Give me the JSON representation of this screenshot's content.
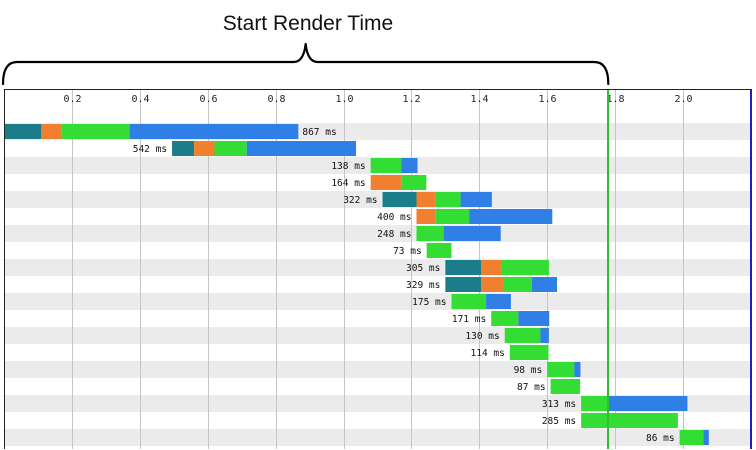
{
  "chart_data": {
    "type": "waterfall",
    "title": "Start Render Time",
    "xlim": [
      0.0,
      2.2
    ],
    "x_ticks": [
      0.2,
      0.4,
      0.6,
      0.8,
      1.0,
      1.2,
      1.4,
      1.6,
      1.8,
      2.0
    ],
    "x_tick_labels": [
      "0.2",
      "0.4",
      "0.6",
      "0.8",
      "1.0",
      "1.2",
      "1.4",
      "1.6",
      "1.8",
      "2.0"
    ],
    "grid": true,
    "start_render": 1.78,
    "start_render_color": "#2fbf2f",
    "document_complete_color": "#2020c0",
    "phase_colors": {
      "connect": "#1a7d89",
      "ssl": "#f08030",
      "ttfb": "#33dd33",
      "download": "#2f7fe6"
    },
    "requests": [
      {
        "label": "867 ms",
        "segments": [
          {
            "phase": "connect",
            "start": 0.0,
            "end": 0.11
          },
          {
            "phase": "ssl",
            "start": 0.11,
            "end": 0.17
          },
          {
            "phase": "ttfb",
            "start": 0.17,
            "end": 0.37
          },
          {
            "phase": "download",
            "start": 0.37,
            "end": 0.867
          }
        ]
      },
      {
        "label": "542 ms",
        "segments": [
          {
            "phase": "connect",
            "start": 0.495,
            "end": 0.56
          },
          {
            "phase": "ssl",
            "start": 0.56,
            "end": 0.62
          },
          {
            "phase": "ttfb",
            "start": 0.62,
            "end": 0.715
          },
          {
            "phase": "download",
            "start": 0.715,
            "end": 1.037
          }
        ]
      },
      {
        "label": "138 ms",
        "segments": [
          {
            "phase": "ttfb",
            "start": 1.08,
            "end": 1.17
          },
          {
            "phase": "download",
            "start": 1.17,
            "end": 1.218
          }
        ]
      },
      {
        "label": "164 ms",
        "segments": [
          {
            "phase": "ssl",
            "start": 1.08,
            "end": 1.17
          },
          {
            "phase": "ttfb",
            "start": 1.17,
            "end": 1.244
          }
        ]
      },
      {
        "label": "322 ms",
        "segments": [
          {
            "phase": "connect",
            "start": 1.115,
            "end": 1.215
          },
          {
            "phase": "ssl",
            "start": 1.215,
            "end": 1.27
          },
          {
            "phase": "ttfb",
            "start": 1.27,
            "end": 1.345
          },
          {
            "phase": "download",
            "start": 1.345,
            "end": 1.437
          }
        ]
      },
      {
        "label": "400 ms",
        "segments": [
          {
            "phase": "ssl",
            "start": 1.215,
            "end": 1.27
          },
          {
            "phase": "ttfb",
            "start": 1.27,
            "end": 1.37
          },
          {
            "phase": "download",
            "start": 1.37,
            "end": 1.615
          }
        ]
      },
      {
        "label": "248 ms",
        "segments": [
          {
            "phase": "ttfb",
            "start": 1.215,
            "end": 1.295
          },
          {
            "phase": "download",
            "start": 1.295,
            "end": 1.463
          }
        ]
      },
      {
        "label": "73 ms",
        "segments": [
          {
            "phase": "ttfb",
            "start": 1.245,
            "end": 1.318
          }
        ]
      },
      {
        "label": "305 ms",
        "segments": [
          {
            "phase": "connect",
            "start": 1.3,
            "end": 1.405
          },
          {
            "phase": "ssl",
            "start": 1.405,
            "end": 1.465
          },
          {
            "phase": "ttfb",
            "start": 1.465,
            "end": 1.605
          }
        ]
      },
      {
        "label": "329 ms",
        "segments": [
          {
            "phase": "connect",
            "start": 1.3,
            "end": 1.405
          },
          {
            "phase": "ssl",
            "start": 1.405,
            "end": 1.47
          },
          {
            "phase": "ttfb",
            "start": 1.47,
            "end": 1.555
          },
          {
            "phase": "download",
            "start": 1.555,
            "end": 1.629
          }
        ]
      },
      {
        "label": "175 ms",
        "segments": [
          {
            "phase": "ttfb",
            "start": 1.318,
            "end": 1.42
          },
          {
            "phase": "download",
            "start": 1.42,
            "end": 1.493
          }
        ]
      },
      {
        "label": "171 ms",
        "segments": [
          {
            "phase": "ttfb",
            "start": 1.435,
            "end": 1.515
          },
          {
            "phase": "download",
            "start": 1.515,
            "end": 1.606
          }
        ]
      },
      {
        "label": "130 ms",
        "segments": [
          {
            "phase": "ttfb",
            "start": 1.475,
            "end": 1.58
          },
          {
            "phase": "download",
            "start": 1.58,
            "end": 1.605
          }
        ]
      },
      {
        "label": "114 ms",
        "segments": [
          {
            "phase": "ttfb",
            "start": 1.49,
            "end": 1.604
          }
        ]
      },
      {
        "label": "98 ms",
        "segments": [
          {
            "phase": "ttfb",
            "start": 1.6,
            "end": 1.68
          },
          {
            "phase": "download",
            "start": 1.68,
            "end": 1.698
          }
        ]
      },
      {
        "label": "87 ms",
        "segments": [
          {
            "phase": "ttfb",
            "start": 1.61,
            "end": 1.697
          }
        ]
      },
      {
        "label": "313 ms",
        "segments": [
          {
            "phase": "ttfb",
            "start": 1.7,
            "end": 1.78
          },
          {
            "phase": "download",
            "start": 1.78,
            "end": 2.013
          }
        ]
      },
      {
        "label": "285 ms",
        "segments": [
          {
            "phase": "ttfb",
            "start": 1.7,
            "end": 1.985
          }
        ]
      },
      {
        "label": "86 ms",
        "segments": [
          {
            "phase": "ttfb",
            "start": 1.99,
            "end": 2.06
          },
          {
            "phase": "download",
            "start": 2.06,
            "end": 2.076
          }
        ]
      }
    ]
  }
}
